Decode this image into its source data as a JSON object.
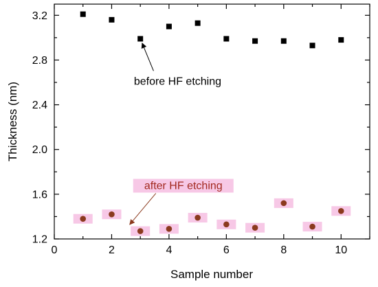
{
  "chart_data": {
    "type": "scatter",
    "title": "",
    "xlabel": "Sample number",
    "ylabel": "Thickness (nm)",
    "xlim": [
      0,
      11
    ],
    "ylim": [
      1.2,
      3.3
    ],
    "xticks": [
      0,
      2,
      4,
      6,
      8,
      10
    ],
    "yticks": [
      1.2,
      1.6,
      2.0,
      2.4,
      2.8,
      3.2
    ],
    "xtick_labels": [
      "0",
      "2",
      "4",
      "6",
      "8",
      "10"
    ],
    "ytick_labels": [
      "1.2",
      "1.6",
      "2.0",
      "2.4",
      "2.8",
      "3.2"
    ],
    "grid": false,
    "series": [
      {
        "name": "",
        "marker": "square",
        "color": "#000000",
        "x": [
          1,
          2,
          3,
          4,
          5,
          6,
          7,
          8,
          9,
          10
        ],
        "y": [
          3.21,
          3.16,
          2.99,
          3.1,
          3.13,
          2.99,
          2.97,
          2.97,
          2.93,
          2.98
        ]
      },
      {
        "name": "",
        "marker": "circle",
        "color": "#8b3a1e",
        "highlight_color": "#f7c8e6",
        "x": [
          1,
          2,
          3,
          4,
          5,
          6,
          7,
          8,
          9,
          10
        ],
        "y": [
          1.38,
          1.42,
          1.27,
          1.29,
          1.39,
          1.33,
          1.3,
          1.52,
          1.31,
          1.45
        ]
      }
    ],
    "annotations": [
      {
        "text": "before HF etching",
        "color": "#000000",
        "at": [
          4.3,
          2.58
        ],
        "points_to": [
          3.0,
          2.99
        ]
      },
      {
        "text": "after HF etching",
        "color": "#a2281e",
        "at": [
          4.5,
          1.645
        ],
        "points_to": [
          2.6,
          1.32
        ],
        "highlight_color": "#f7c8e6"
      }
    ]
  }
}
